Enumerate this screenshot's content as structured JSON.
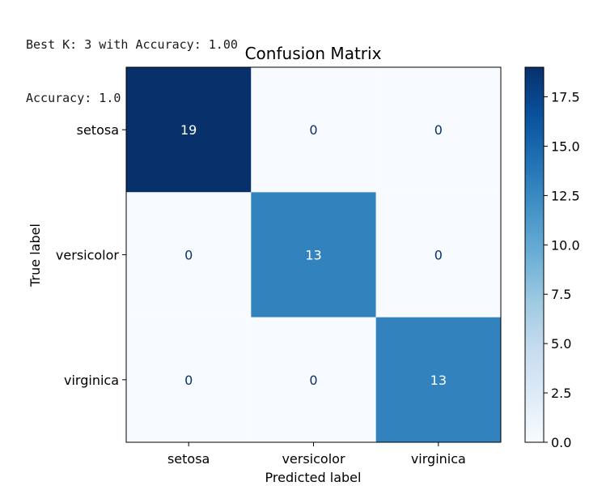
{
  "console_output": {
    "lines": [
      "Best K: 3 with Accuracy: 1.00",
      "Accuracy: 1.0"
    ]
  },
  "chart_data": {
    "type": "heatmap",
    "title": "Confusion Matrix",
    "xlabel": "Predicted label",
    "ylabel": "True label",
    "x_categories": [
      "setosa",
      "versicolor",
      "virginica"
    ],
    "y_categories": [
      "setosa",
      "versicolor",
      "virginica"
    ],
    "values": [
      [
        19,
        0,
        0
      ],
      [
        0,
        13,
        0
      ],
      [
        0,
        0,
        13
      ]
    ],
    "colormap": "Blues",
    "color_range": [
      0,
      19
    ],
    "colorbar": {
      "ticks": [
        0.0,
        2.5,
        5.0,
        7.5,
        10.0,
        12.5,
        15.0,
        17.5
      ],
      "tick_labels": [
        "0.0",
        "2.5",
        "5.0",
        "7.5",
        "10.0",
        "12.5",
        "15.0",
        "17.5"
      ]
    },
    "colors": {
      "cmap_low": "#f7fbff",
      "cmap_mid": "#3282be",
      "cmap_high": "#08306b",
      "text_dark_bg": "#ffffff",
      "text_light_bg": "#08306b"
    },
    "grid": false
  }
}
